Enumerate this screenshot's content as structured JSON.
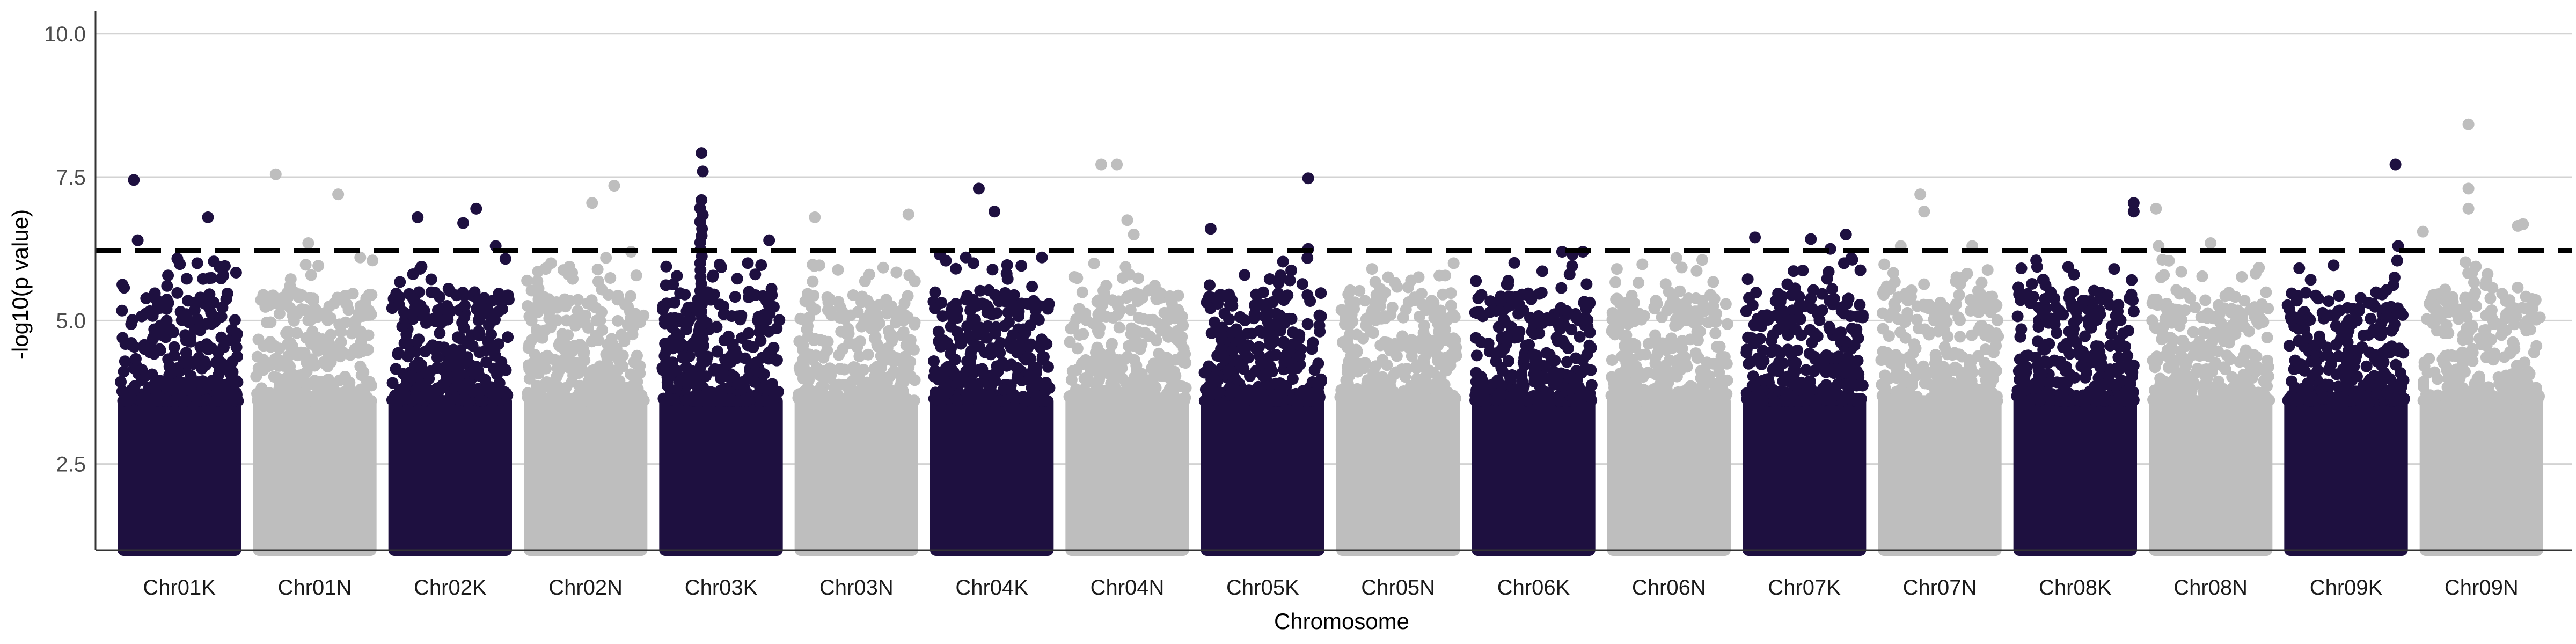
{
  "chart_data": {
    "type": "scatter",
    "title": "",
    "xlabel": "Chromosome",
    "ylabel": "-log10(p value)",
    "ylim": [
      1.0,
      10.4
    ],
    "yticks": [
      "2.5",
      "5.0",
      "7.5",
      "10.0"
    ],
    "ytick_values": [
      2.5,
      5.0,
      7.5,
      10.0
    ],
    "grid": "horizontal major",
    "legend": "none",
    "colors": {
      "K": "#1e1040",
      "N": "#bebebe",
      "threshold": "#000000",
      "grid": "#d3d3d3"
    },
    "threshold": {
      "value": 6.22,
      "style": "dashed"
    },
    "baseline_min": 1.0,
    "categories": [
      "Chr01K",
      "Chr01N",
      "Chr02K",
      "Chr02N",
      "Chr03K",
      "Chr03N",
      "Chr04K",
      "Chr04N",
      "Chr05K",
      "Chr05N",
      "Chr06K",
      "Chr06N",
      "Chr07K",
      "Chr07N",
      "Chr08K",
      "Chr08N",
      "Chr09K",
      "Chr09N"
    ],
    "series": [
      {
        "chromosome": "Chr01K",
        "group": "K",
        "top_points": [
          [
            0.15,
            7.45
          ],
          [
            0.18,
            6.4
          ],
          [
            0.72,
            6.8
          ],
          [
            0.85,
            5.95
          ]
        ]
      },
      {
        "chromosome": "Chr01N",
        "group": "N",
        "top_points": [
          [
            0.2,
            7.55
          ],
          [
            0.45,
            6.35
          ],
          [
            0.68,
            7.2
          ],
          [
            0.85,
            6.1
          ]
        ]
      },
      {
        "chromosome": "Chr02K",
        "group": "K",
        "top_points": [
          [
            0.25,
            6.8
          ],
          [
            0.6,
            6.7
          ],
          [
            0.7,
            6.95
          ],
          [
            0.85,
            6.3
          ]
        ]
      },
      {
        "chromosome": "Chr02N",
        "group": "N",
        "top_points": [
          [
            0.55,
            7.05
          ],
          [
            0.72,
            7.35
          ],
          [
            0.85,
            6.2
          ]
        ]
      },
      {
        "chromosome": "Chr03K",
        "group": "K",
        "top_points": [
          [
            0.35,
            7.92
          ],
          [
            0.36,
            7.6
          ],
          [
            0.35,
            7.1
          ],
          [
            0.87,
            6.4
          ]
        ]
      },
      {
        "chromosome": "Chr03N",
        "group": "N",
        "top_points": [
          [
            0.18,
            6.8
          ],
          [
            0.9,
            6.85
          ]
        ]
      },
      {
        "chromosome": "Chr04K",
        "group": "K",
        "top_points": [
          [
            0.1,
            6.15
          ],
          [
            0.4,
            7.3
          ],
          [
            0.52,
            6.9
          ],
          [
            0.3,
            6.1
          ]
        ]
      },
      {
        "chromosome": "Chr04N",
        "group": "N",
        "top_points": [
          [
            0.3,
            7.72
          ],
          [
            0.42,
            7.72
          ],
          [
            0.5,
            6.75
          ],
          [
            0.55,
            6.5
          ]
        ]
      },
      {
        "chromosome": "Chr05K",
        "group": "K",
        "top_points": [
          [
            0.1,
            6.6
          ],
          [
            0.85,
            7.48
          ],
          [
            0.85,
            6.25
          ]
        ]
      },
      {
        "chromosome": "Chr05N",
        "group": "N",
        "top_points": [
          [
            0.3,
            5.9
          ],
          [
            0.6,
            5.7
          ]
        ]
      },
      {
        "chromosome": "Chr06K",
        "group": "K",
        "top_points": [
          [
            0.72,
            6.2
          ],
          [
            0.8,
            6.15
          ],
          [
            0.88,
            6.2
          ]
        ]
      },
      {
        "chromosome": "Chr06N",
        "group": "N",
        "top_points": [
          [
            0.1,
            5.9
          ],
          [
            0.5,
            5.5
          ]
        ]
      },
      {
        "chromosome": "Chr07K",
        "group": "K",
        "top_points": [
          [
            0.12,
            6.45
          ],
          [
            0.55,
            6.42
          ],
          [
            0.82,
            6.5
          ],
          [
            0.7,
            6.25
          ]
        ]
      },
      {
        "chromosome": "Chr07N",
        "group": "N",
        "top_points": [
          [
            0.35,
            7.2
          ],
          [
            0.38,
            6.9
          ],
          [
            0.2,
            6.3
          ],
          [
            0.75,
            6.3
          ]
        ]
      },
      {
        "chromosome": "Chr08K",
        "group": "K",
        "top_points": [
          [
            0.95,
            7.05
          ],
          [
            0.95,
            6.9
          ],
          [
            0.2,
            6.05
          ]
        ]
      },
      {
        "chromosome": "Chr08N",
        "group": "N",
        "top_points": [
          [
            0.08,
            6.95
          ],
          [
            0.5,
            6.35
          ],
          [
            0.1,
            6.3
          ]
        ]
      },
      {
        "chromosome": "Chr09K",
        "group": "K",
        "top_points": [
          [
            0.88,
            7.72
          ],
          [
            0.9,
            6.3
          ]
        ]
      },
      {
        "chromosome": "Chr09N",
        "group": "N",
        "top_points": [
          [
            0.4,
            8.42
          ],
          [
            0.4,
            7.3
          ],
          [
            0.4,
            6.95
          ],
          [
            0.78,
            6.65
          ],
          [
            0.82,
            6.68
          ],
          [
            0.05,
            6.55
          ]
        ]
      }
    ]
  }
}
